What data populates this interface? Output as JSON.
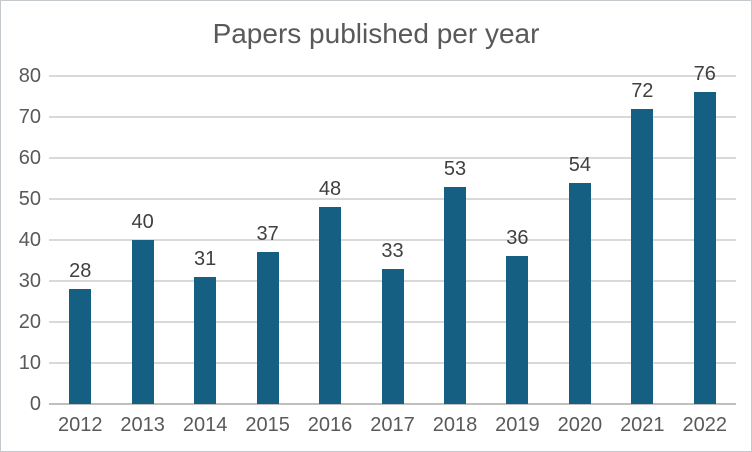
{
  "chart_data": {
    "type": "bar",
    "title": "Papers published per year",
    "categories": [
      "2012",
      "2013",
      "2014",
      "2015",
      "2016",
      "2017",
      "2018",
      "2019",
      "2020",
      "2021",
      "2022"
    ],
    "values": [
      28,
      40,
      31,
      37,
      48,
      33,
      53,
      36,
      54,
      72,
      76
    ],
    "xlabel": "",
    "ylabel": "",
    "ylim": [
      0,
      80
    ],
    "yticks": [
      0,
      10,
      20,
      30,
      40,
      50,
      60,
      70,
      80
    ],
    "grid": true,
    "legend_position": "none",
    "data_labels": true,
    "colors": {
      "bar": "#156082",
      "title_text": "#595959",
      "tick_text": "#595959",
      "data_label_text": "#404040",
      "gridline": "#d9d9d9",
      "axis_line": "#bfbfbf",
      "background": "#ffffff",
      "border": "#c4c9cd"
    }
  }
}
